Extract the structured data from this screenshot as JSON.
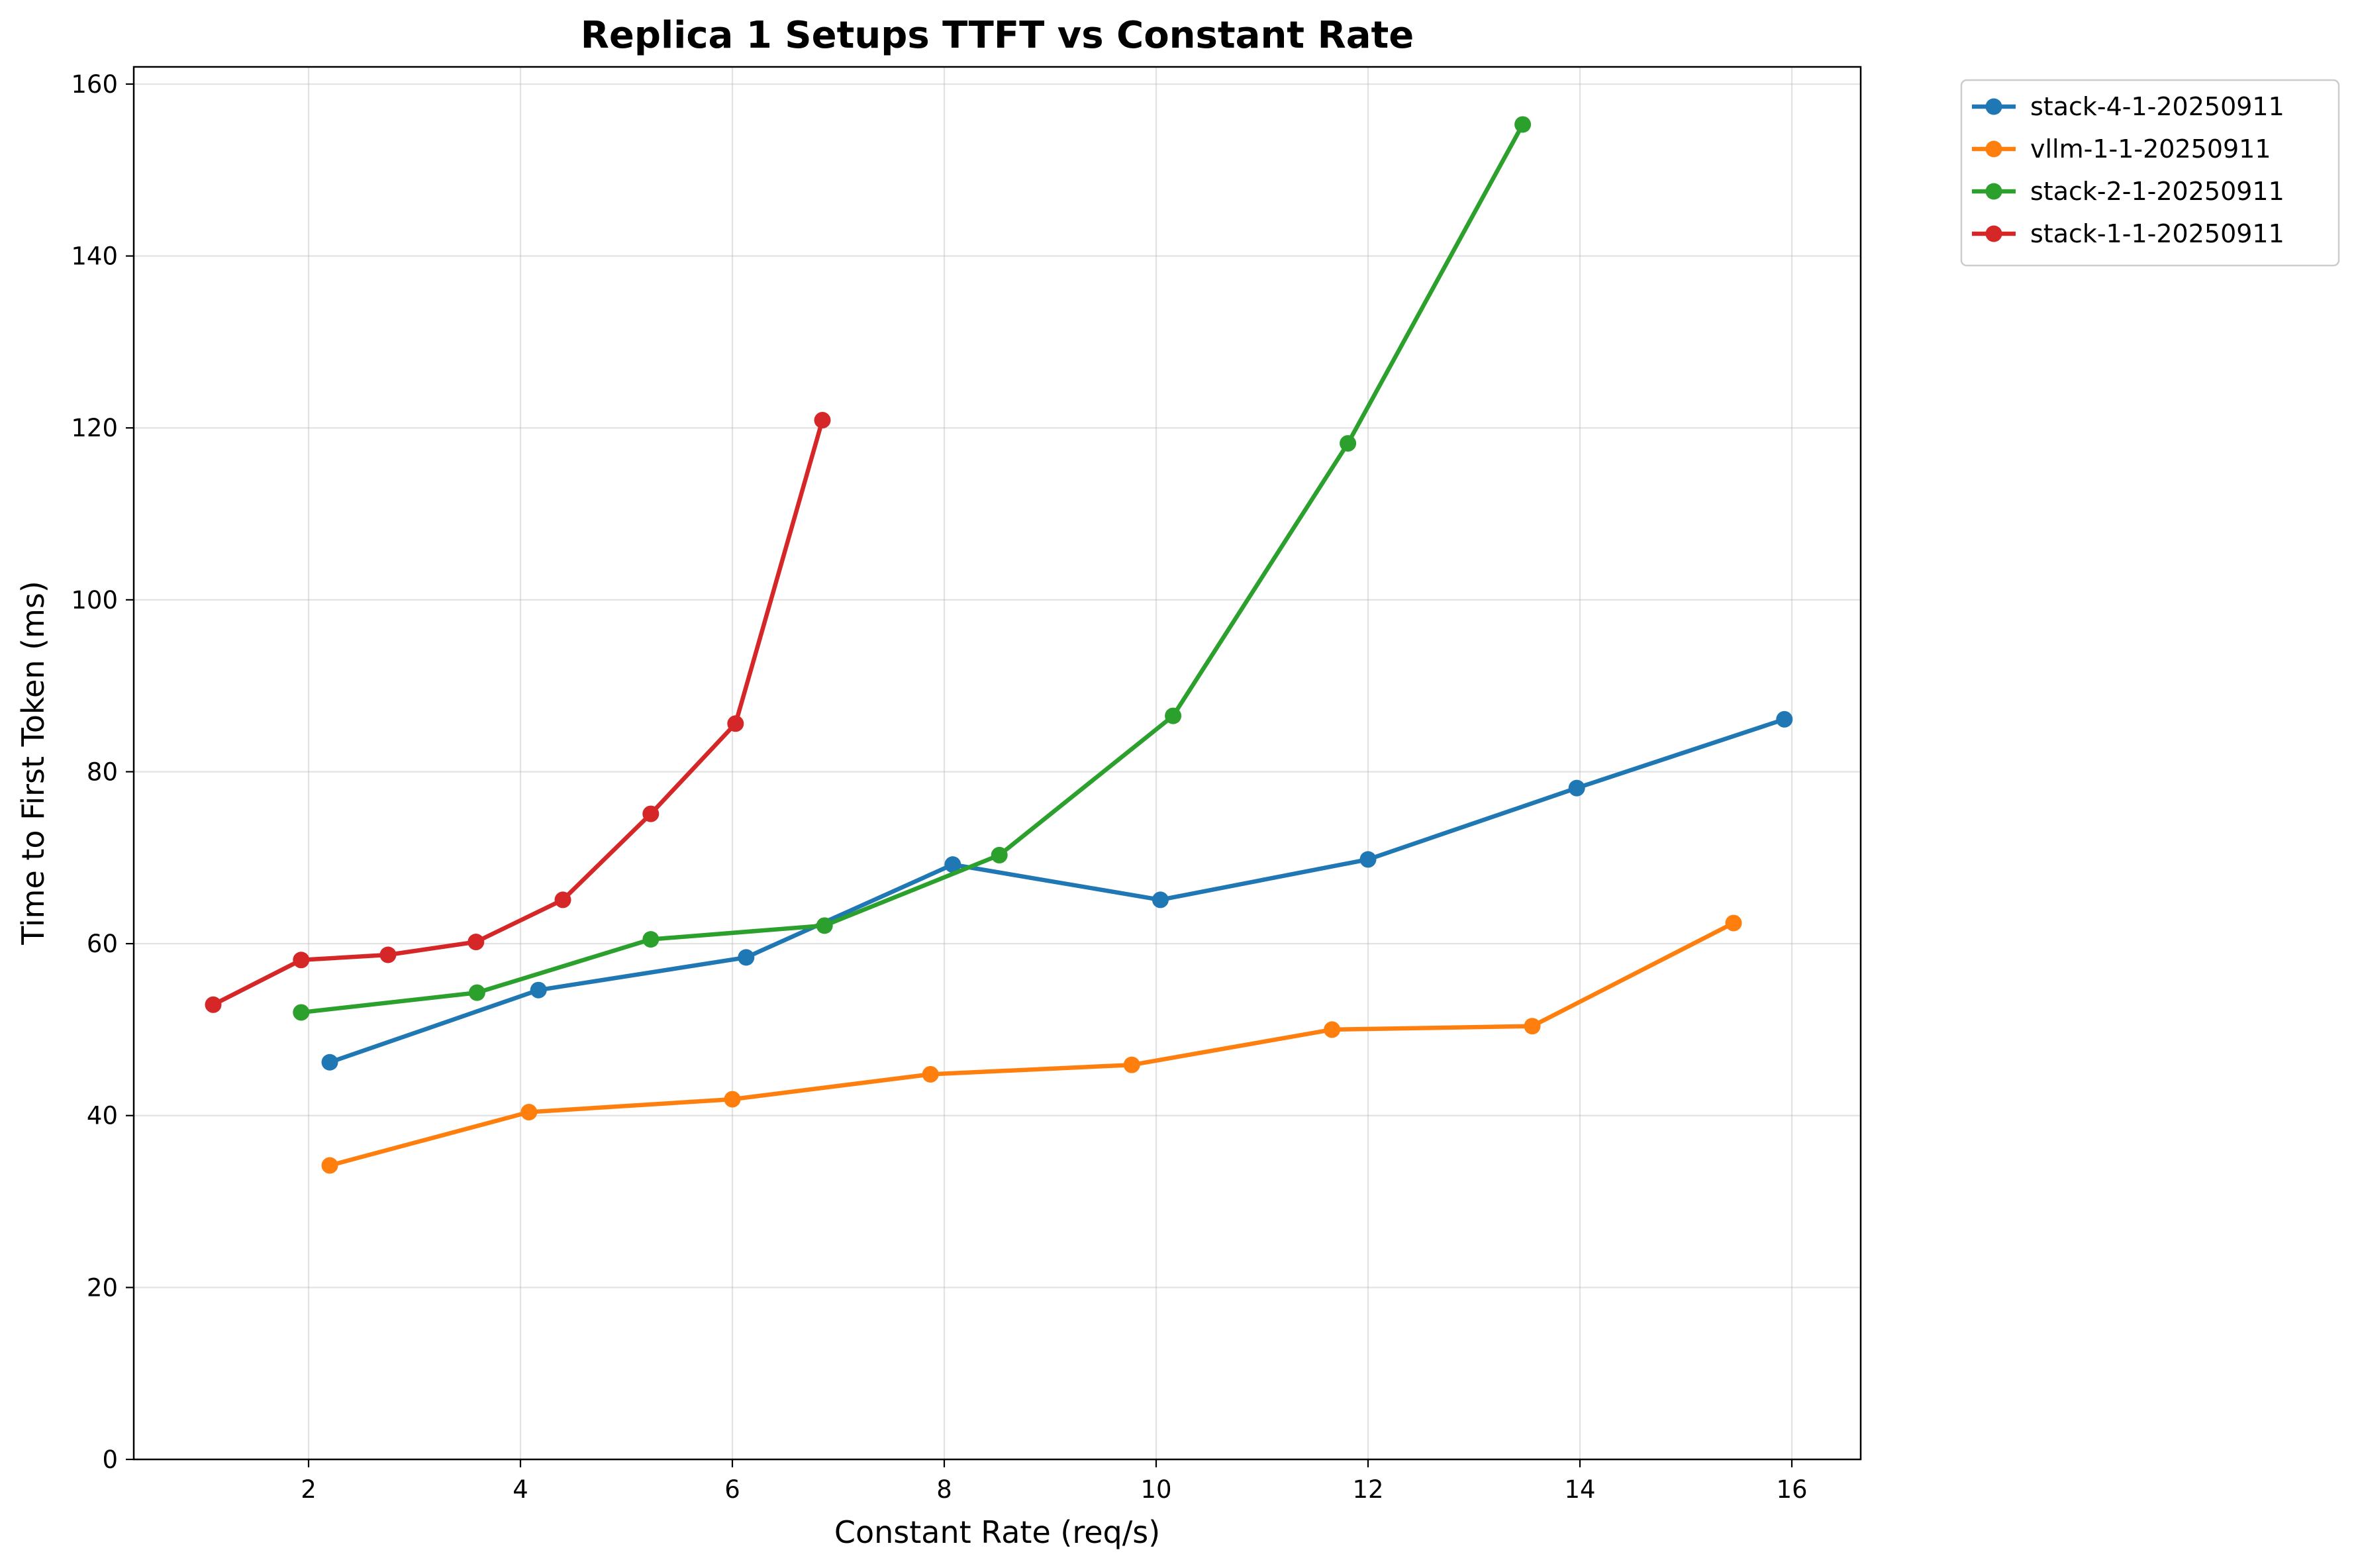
{
  "chart_data": {
    "type": "line",
    "title": "Replica 1 Setups TTFT vs Constant Rate",
    "xlabel": "Constant Rate (req/s)",
    "ylabel": "Time to First Token (ms)",
    "xlim": [
      0.35,
      16.65
    ],
    "ylim": [
      0,
      162
    ],
    "xticks": [
      2,
      4,
      6,
      8,
      10,
      12,
      14,
      16
    ],
    "yticks": [
      0,
      20,
      40,
      60,
      80,
      100,
      120,
      140,
      160
    ],
    "grid": true,
    "legend_position": "outside-top-right",
    "series": [
      {
        "name": "stack-4-1-20250911",
        "color": "#1f77b4",
        "points": [
          [
            2.2,
            46.2
          ],
          [
            4.17,
            54.6
          ],
          [
            6.13,
            58.4
          ],
          [
            8.08,
            69.2
          ],
          [
            10.04,
            65.1
          ],
          [
            12.0,
            69.8
          ],
          [
            13.97,
            78.1
          ],
          [
            15.93,
            86.1
          ]
        ]
      },
      {
        "name": "vllm-1-1-20250911",
        "color": "#ff7f0e",
        "points": [
          [
            2.2,
            34.2
          ],
          [
            4.08,
            40.4
          ],
          [
            6.0,
            41.9
          ],
          [
            7.87,
            44.8
          ],
          [
            9.77,
            45.9
          ],
          [
            11.66,
            50.0
          ],
          [
            13.55,
            50.4
          ],
          [
            15.45,
            62.4
          ]
        ]
      },
      {
        "name": "stack-2-1-20250911",
        "color": "#2ca02c",
        "points": [
          [
            1.93,
            52.0
          ],
          [
            3.59,
            54.3
          ],
          [
            5.23,
            60.5
          ],
          [
            6.87,
            62.1
          ],
          [
            8.52,
            70.3
          ],
          [
            10.16,
            86.5
          ],
          [
            11.81,
            118.2
          ],
          [
            13.46,
            155.3
          ]
        ]
      },
      {
        "name": "stack-1-1-20250911",
        "color": "#d62728",
        "points": [
          [
            1.1,
            52.9
          ],
          [
            1.93,
            58.1
          ],
          [
            2.75,
            58.7
          ],
          [
            3.58,
            60.2
          ],
          [
            4.4,
            65.1
          ],
          [
            5.23,
            75.1
          ],
          [
            6.03,
            85.6
          ],
          [
            6.85,
            120.9
          ]
        ]
      }
    ]
  }
}
